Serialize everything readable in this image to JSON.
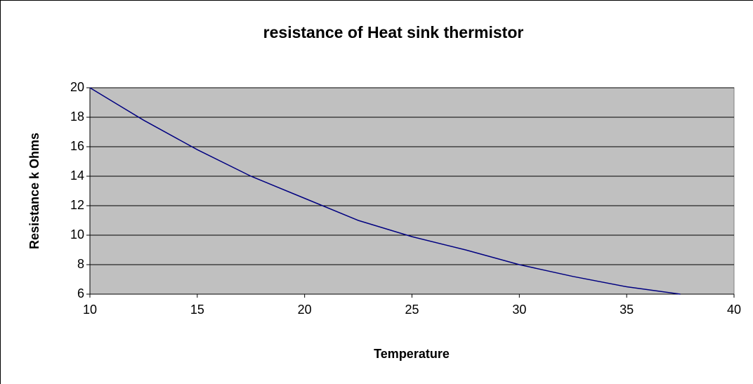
{
  "chart_data": {
    "type": "line",
    "title": "resistance of Heat sink thermistor",
    "x_label": "Temperature",
    "y_label": "Resistance k Ohms",
    "series": [
      {
        "name": "Resistance",
        "color": "#000080",
        "x": [
          10,
          11.25,
          12.5,
          13.75,
          15,
          17.5,
          20,
          22.5,
          25,
          27.5,
          30,
          32.5,
          35,
          37.5
        ],
        "values": [
          20,
          18.9,
          17.8,
          16.8,
          15.8,
          14,
          12.5,
          11,
          9.9,
          9,
          8,
          7.2,
          6.5,
          6
        ]
      }
    ],
    "xlim": [
      10,
      40
    ],
    "xticks": [
      10,
      15,
      20,
      25,
      30,
      35,
      40
    ],
    "ylim": [
      6,
      20
    ],
    "yticks": [
      6,
      8,
      10,
      12,
      14,
      16,
      18,
      20
    ],
    "grid": true,
    "plot_background": "#c0c0c0"
  }
}
